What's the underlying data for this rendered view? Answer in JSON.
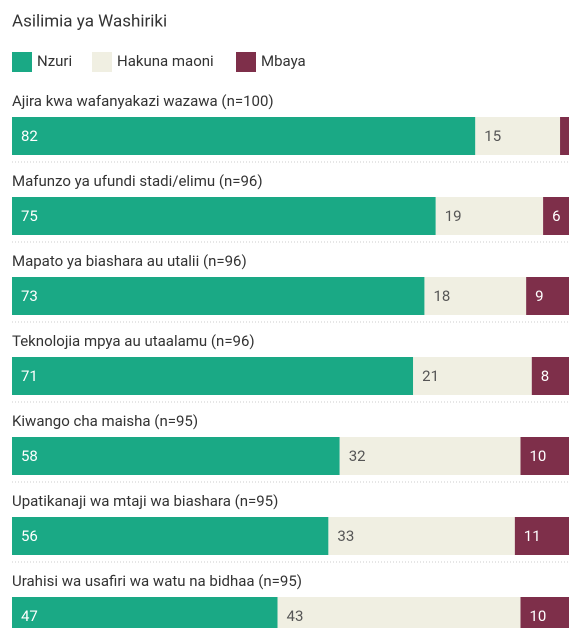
{
  "chart_data": {
    "type": "stacked-bar",
    "orientation": "horizontal",
    "title": "Asilimia ya Washiriki",
    "categories": [
      "Ajira kwa wafanyakazi wazawa (n=100)",
      "Mafunzo ya ufundi stadi/elimu (n=96)",
      "Mapato ya biashara au utalii (n=96)",
      "Teknolojia mpya au utaalamu (n=96)",
      "Kiwango cha maisha (n=95)",
      "Upatikanaji wa mtaji wa biashara (n=95)",
      "Urahisi wa usafiri wa watu na bidhaa (n=95)"
    ],
    "series": [
      {
        "name": "Nzuri",
        "color": "#1aa985",
        "values": [
          82,
          75,
          73,
          71,
          58,
          56,
          47
        ]
      },
      {
        "name": "Hakuna maoni",
        "color": "#f0efe2",
        "values": [
          15,
          19,
          18,
          21,
          32,
          33,
          43
        ]
      },
      {
        "name": "Mbaya",
        "color": "#7e2f4a",
        "values": [
          3,
          6,
          9,
          8,
          10,
          11,
          10
        ],
        "value_labels": [
          null,
          "6",
          "9",
          "8",
          "10",
          "11",
          "10"
        ]
      }
    ],
    "xlim": [
      0,
      100
    ]
  }
}
